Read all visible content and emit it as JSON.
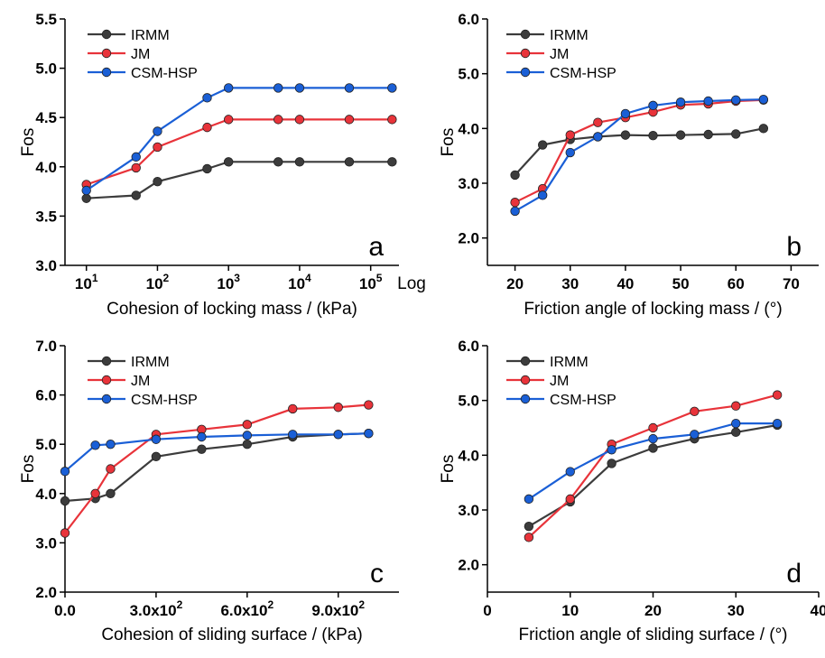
{
  "colors": {
    "IRMM": "#3c3c3c",
    "JM": "#e8333a",
    "CSM-HSP": "#1a5fd6"
  },
  "chart_data": [
    {
      "id": "a",
      "type": "line",
      "panel_label": "a",
      "xlabel": "Cohesion of locking mass / (kPa)",
      "ylabel": "Fos",
      "xscale": "log",
      "xscale_label": "Log",
      "xlim": [
        5,
        250000
      ],
      "ylim": [
        3.0,
        5.5
      ],
      "xticks": [
        10,
        100,
        1000,
        10000,
        100000
      ],
      "xtick_exponents": [
        "1",
        "2",
        "3",
        "4",
        "5"
      ],
      "yticks": [
        "3.0",
        "3.5",
        "4.0",
        "4.5",
        "5.0",
        "5.5"
      ],
      "x": [
        10,
        50,
        100,
        500,
        1000,
        5000,
        10000,
        50000,
        200000
      ],
      "series": [
        {
          "name": "IRMM",
          "values": [
            3.68,
            3.71,
            3.85,
            3.98,
            4.05,
            4.05,
            4.05,
            4.05,
            4.05
          ]
        },
        {
          "name": "JM",
          "values": [
            3.82,
            3.99,
            4.2,
            4.4,
            4.48,
            4.48,
            4.48,
            4.48,
            4.48
          ]
        },
        {
          "name": "CSM-HSP",
          "values": [
            3.76,
            4.1,
            4.36,
            4.7,
            4.8,
            4.8,
            4.8,
            4.8,
            4.8
          ]
        }
      ],
      "legend_position": "top-left"
    },
    {
      "id": "b",
      "type": "line",
      "panel_label": "b",
      "xlabel": "Friction angle of locking mass / (°)",
      "ylabel": "Fos",
      "xlim": [
        15,
        75
      ],
      "ylim": [
        1.5,
        6.0
      ],
      "xticks": [
        "20",
        "30",
        "40",
        "50",
        "60",
        "70"
      ],
      "yticks": [
        "2.0",
        "3.0",
        "4.0",
        "5.0",
        "6.0"
      ],
      "x": [
        20,
        25,
        30,
        35,
        40,
        45,
        50,
        55,
        60,
        65
      ],
      "series": [
        {
          "name": "IRMM",
          "values": [
            3.15,
            3.7,
            3.8,
            3.85,
            3.88,
            3.87,
            3.88,
            3.89,
            3.9,
            4.0
          ]
        },
        {
          "name": "JM",
          "values": [
            2.65,
            2.9,
            3.88,
            4.11,
            4.2,
            4.3,
            4.43,
            4.45,
            4.5,
            4.52
          ]
        },
        {
          "name": "CSM-HSP",
          "values": [
            2.49,
            2.78,
            3.56,
            3.85,
            4.27,
            4.42,
            4.48,
            4.5,
            4.52,
            4.53
          ]
        }
      ],
      "legend_position": "top-left"
    },
    {
      "id": "c",
      "type": "line",
      "panel_label": "c",
      "xlabel": "Cohesion of sliding surface / (kPa)",
      "ylabel": "Fos",
      "xlim": [
        0,
        1100
      ],
      "ylim": [
        2.0,
        7.0
      ],
      "xticks": [
        "0.0",
        "3.0x10",
        "6.0x10",
        "9.0x10"
      ],
      "xtick_exponent": "2",
      "yticks": [
        "2.0",
        "3.0",
        "4.0",
        "5.0",
        "6.0",
        "7.0"
      ],
      "x": [
        0,
        100,
        150,
        300,
        450,
        600,
        750,
        900,
        1000
      ],
      "series": [
        {
          "name": "IRMM",
          "values": [
            3.85,
            3.9,
            4.0,
            4.75,
            4.9,
            5.0,
            5.15,
            5.2,
            5.22
          ]
        },
        {
          "name": "JM",
          "values": [
            3.2,
            4.0,
            4.5,
            5.2,
            5.3,
            5.4,
            5.72,
            5.75,
            5.8
          ]
        },
        {
          "name": "CSM-HSP",
          "values": [
            4.45,
            4.98,
            5.0,
            5.1,
            5.15,
            5.18,
            5.2,
            5.2,
            5.22
          ]
        }
      ],
      "legend_position": "top-left"
    },
    {
      "id": "d",
      "type": "line",
      "panel_label": "d",
      "xlabel": "Friction angle of sliding surface / (°)",
      "ylabel": "Fos",
      "xlim": [
        0,
        40
      ],
      "ylim": [
        1.5,
        6.0
      ],
      "xticks": [
        "0",
        "10",
        "20",
        "30",
        "40"
      ],
      "yticks": [
        "2.0",
        "3.0",
        "4.0",
        "5.0",
        "6.0"
      ],
      "x": [
        5,
        10,
        15,
        20,
        25,
        30,
        35
      ],
      "series": [
        {
          "name": "IRMM",
          "values": [
            2.7,
            3.15,
            3.85,
            4.13,
            4.3,
            4.42,
            4.55
          ]
        },
        {
          "name": "JM",
          "values": [
            2.5,
            3.2,
            4.2,
            4.5,
            4.8,
            4.9,
            5.1
          ]
        },
        {
          "name": "CSM-HSP",
          "values": [
            3.2,
            3.7,
            4.1,
            4.3,
            4.38,
            4.58,
            4.58
          ]
        }
      ],
      "legend_position": "top-left"
    }
  ]
}
